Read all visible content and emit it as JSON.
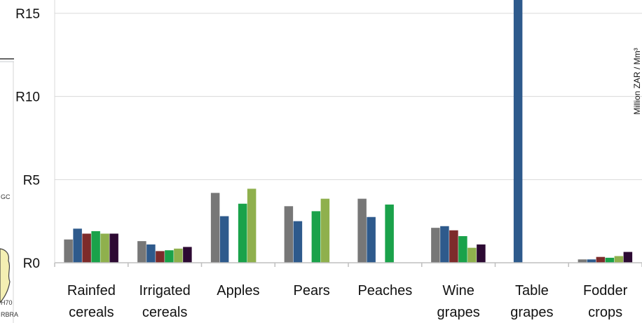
{
  "chart_data": {
    "type": "bar",
    "title": "",
    "xlabel": "",
    "ylabel": "Million ZAR / Mm³",
    "ylim": [
      0,
      15.8
    ],
    "yticks": [
      {
        "value": 0,
        "label": "R0"
      },
      {
        "value": 5,
        "label": "R5"
      },
      {
        "value": 10,
        "label": "R10"
      },
      {
        "value": 15,
        "label": "R15"
      }
    ],
    "grid": true,
    "categories": [
      [
        "Rainfed",
        "cereals"
      ],
      [
        "Irrigated",
        "cereals"
      ],
      [
        "Apples"
      ],
      [
        "Pears"
      ],
      [
        "Peaches"
      ],
      [
        "Wine",
        "grapes"
      ],
      [
        "Table",
        "grapes"
      ],
      [
        "Fodder",
        "crops"
      ]
    ],
    "series": [
      {
        "color": "#777777",
        "values": [
          1.4,
          1.3,
          4.2,
          3.4,
          3.85,
          2.1,
          null,
          0.2
        ]
      },
      {
        "color": "#2e5a8c",
        "values": [
          2.05,
          1.1,
          2.8,
          2.5,
          2.75,
          2.2,
          15.8,
          0.2
        ]
      },
      {
        "color": "#7d2b2b",
        "values": [
          1.75,
          0.7,
          null,
          null,
          null,
          1.95,
          null,
          0.35
        ]
      },
      {
        "color": "#1aa24a",
        "values": [
          1.9,
          0.75,
          3.55,
          3.1,
          3.5,
          1.6,
          null,
          0.3
        ]
      },
      {
        "color": "#8fb04d",
        "values": [
          1.75,
          0.85,
          4.45,
          3.85,
          null,
          0.9,
          null,
          0.4
        ]
      },
      {
        "color": "#2d0a33",
        "values": [
          1.75,
          0.95,
          null,
          null,
          null,
          1.1,
          null,
          0.65
        ]
      }
    ]
  },
  "fragments": {
    "left_edge_1": "GC",
    "left_edge_2": "H70",
    "left_edge_3": "RBRA"
  }
}
